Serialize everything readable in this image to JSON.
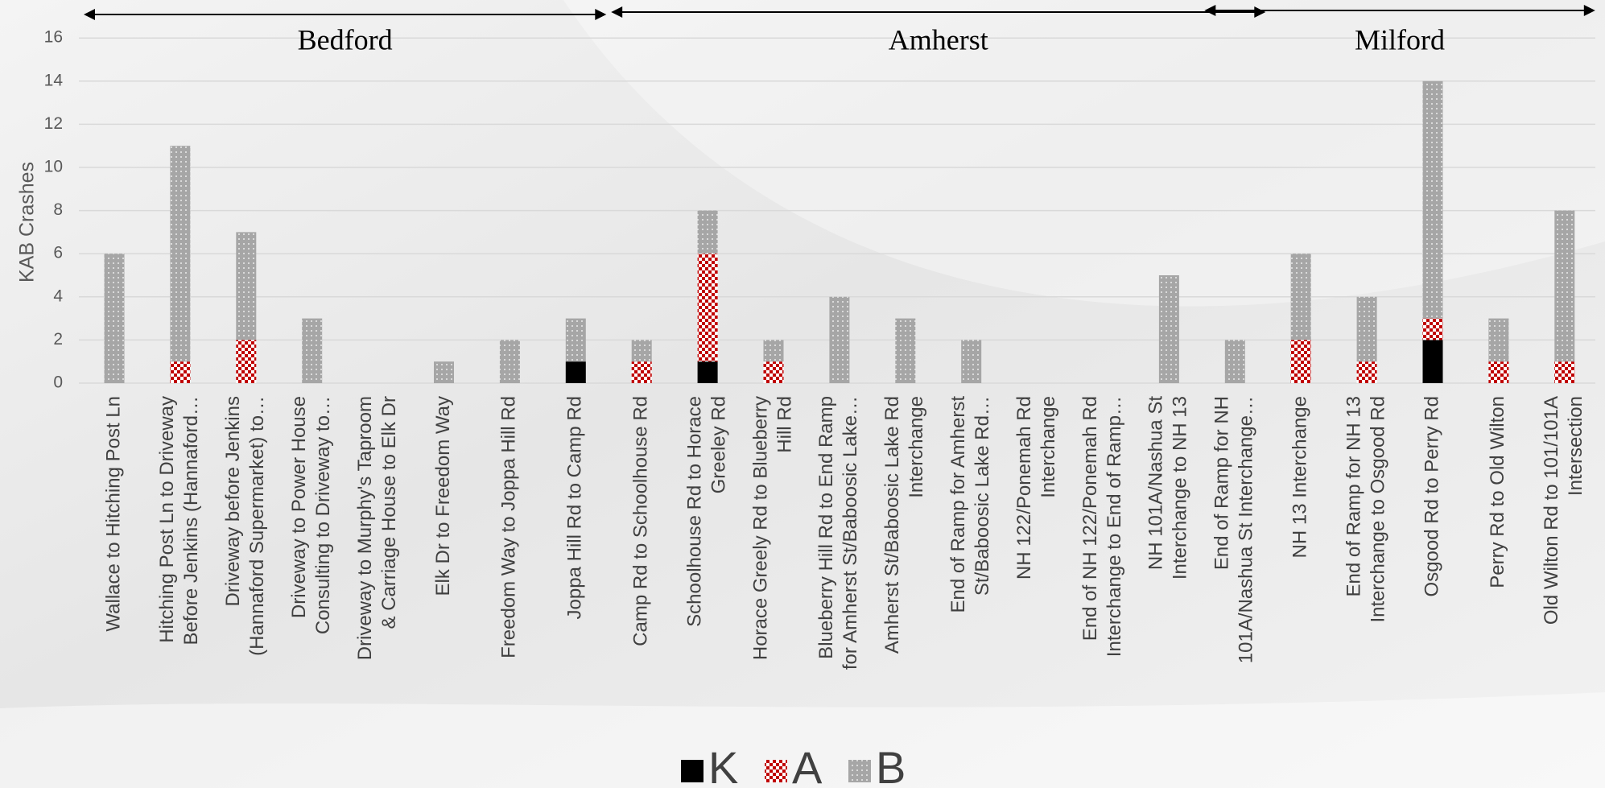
{
  "chart_data": {
    "type": "bar",
    "stacked": true,
    "ylabel": "KAB Crashes",
    "xlabel": "",
    "ylim": [
      0,
      16
    ],
    "yticks": [
      "0",
      "2",
      "4",
      "6",
      "8",
      "10",
      "12",
      "14",
      "16"
    ],
    "grid": true,
    "legend_position": "bottom",
    "categories": [
      [
        "Wallace to Hitching Post Ln"
      ],
      [
        "Hitching Post Ln to Driveway",
        "Before Jenkins (Hannaford…"
      ],
      [
        "Driveway before Jenkins",
        "(Hannaford Supermarket) to…"
      ],
      [
        "Driveway to Power House",
        "Consulting to Driveway to…"
      ],
      [
        "Driveway to Murphy's Taproom",
        "& Carriage House to Elk Dr"
      ],
      [
        "Elk Dr to Freedom Way"
      ],
      [
        "Freedom Way to Joppa Hill Rd"
      ],
      [
        "Joppa Hill Rd to Camp Rd"
      ],
      [
        "Camp Rd to Schoolhouse Rd"
      ],
      [
        "Schoolhouse Rd to Horace",
        "Greeley Rd"
      ],
      [
        "Horace Greely Rd to Blueberry",
        "Hill Rd"
      ],
      [
        "Blueberry Hill Rd to End Ramp",
        "for Amherst St/Baboosic Lake…"
      ],
      [
        "Amherst St/Baboosic Lake Rd",
        "Interchange"
      ],
      [
        "End of Ramp for Amherst",
        "St/Baboosic Lake Rd…"
      ],
      [
        "NH 122/Ponemah Rd",
        "Interchange"
      ],
      [
        "End of NH 122/Ponemah Rd",
        "Interchange to End of Ramp…"
      ],
      [
        "NH 101A/Nashua St",
        "Interchange to NH 13"
      ],
      [
        "End of Ramp for NH",
        "101A/Nashua St Interchange…"
      ],
      [
        "NH 13 Interchange"
      ],
      [
        "End of Ramp for NH 13",
        "Interchange to Osgood Rd"
      ],
      [
        "Osgood Rd to Perry Rd"
      ],
      [
        "Perry Rd to Old Wilton"
      ],
      [
        "Old Wilton Rd to 101/101A",
        "Intersection"
      ]
    ],
    "series": [
      {
        "name": "K",
        "color": "#000000",
        "pattern": "solid",
        "values": [
          0,
          0,
          0,
          0,
          0,
          0,
          0,
          1,
          0,
          1,
          0,
          0,
          0,
          0,
          0,
          0,
          0,
          0,
          0,
          0,
          2,
          0,
          0
        ]
      },
      {
        "name": "A",
        "color": "#c00000",
        "pattern": "checker",
        "values": [
          0,
          1,
          2,
          0,
          0,
          0,
          0,
          0,
          1,
          5,
          1,
          0,
          0,
          0,
          0,
          0,
          0,
          0,
          2,
          1,
          1,
          1,
          1
        ]
      },
      {
        "name": "B",
        "color": "#a6a6a6",
        "pattern": "dotted",
        "values": [
          6,
          10,
          5,
          3,
          0,
          1,
          2,
          2,
          1,
          2,
          1,
          4,
          3,
          2,
          0,
          0,
          5,
          2,
          4,
          3,
          11,
          2,
          7
        ]
      }
    ],
    "annotations": [
      {
        "text": "Bedford",
        "from_category": 0,
        "to_category": 7
      },
      {
        "text": "Amherst",
        "from_category": 8,
        "to_category": 17
      },
      {
        "text": "Milford",
        "from_category": 17,
        "to_category": 22
      }
    ]
  }
}
